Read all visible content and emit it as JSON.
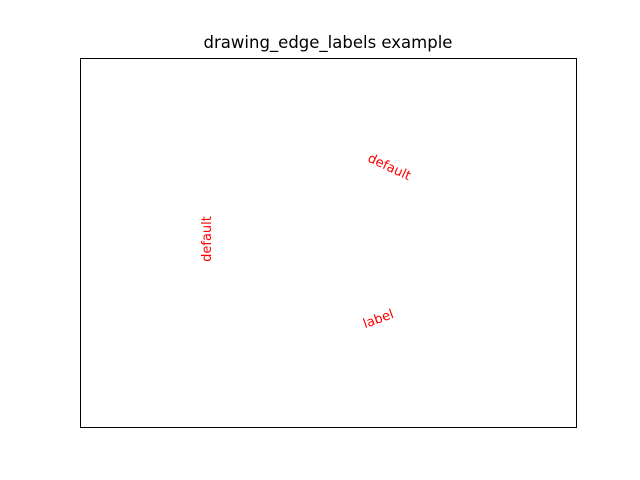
{
  "title": "drawing_edge_labels example",
  "edge_labels": [
    {
      "text": "default",
      "color": "#ff0000"
    },
    {
      "text": "default",
      "color": "#ff0000"
    },
    {
      "text": "label",
      "color": "#ff0000"
    }
  ]
}
